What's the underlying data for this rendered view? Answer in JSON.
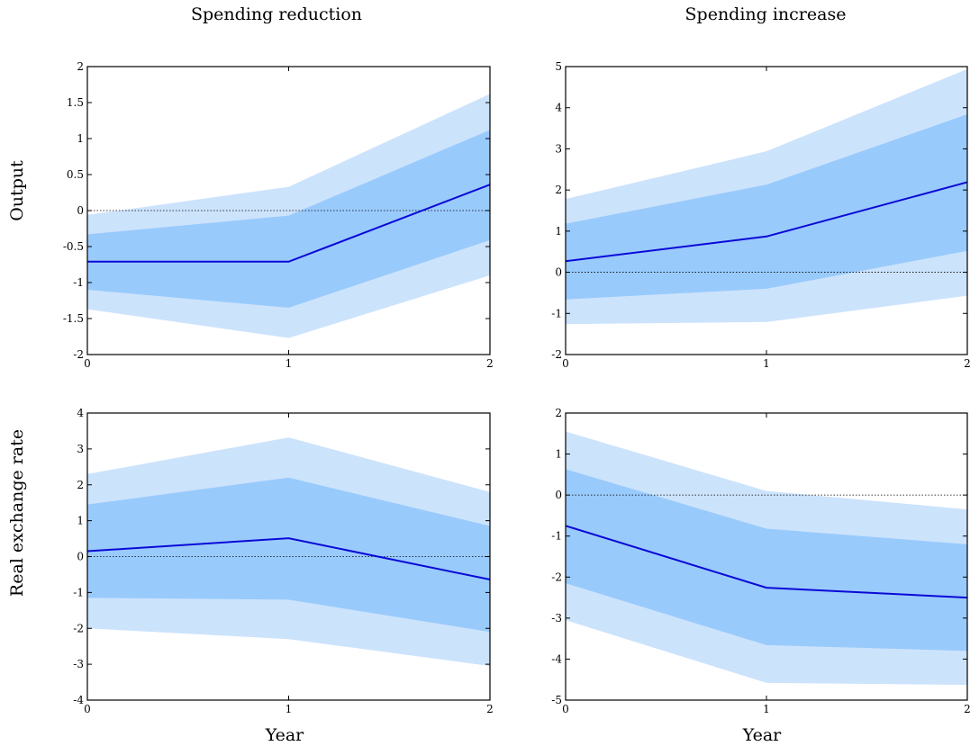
{
  "colors": {
    "outer_band": "#cce3fc",
    "inner_band": "#99cafc",
    "line": "#0a0ad6"
  },
  "chart_data": [
    {
      "type": "area",
      "column_title": "Spending reduction",
      "row_title": "Output",
      "xlabel": "",
      "x": [
        0,
        1,
        2
      ],
      "xticks": [
        "0",
        "1",
        "2"
      ],
      "ylim": [
        -2,
        2
      ],
      "yticks": [
        "-2",
        "-1.5",
        "-1",
        "-0.5",
        "0",
        "0.5",
        "1",
        "1.5",
        "2"
      ],
      "ytick_values": [
        -2,
        -1.5,
        -1,
        -0.5,
        0,
        0.5,
        1,
        1.5,
        2
      ],
      "median": [
        -0.71,
        -0.71,
        0.36
      ],
      "inner_lower": [
        -1.1,
        -1.35,
        -0.41
      ],
      "inner_upper": [
        -0.33,
        -0.07,
        1.12
      ],
      "outer_lower": [
        -1.37,
        -1.77,
        -0.9
      ],
      "outer_upper": [
        -0.06,
        0.33,
        1.62
      ]
    },
    {
      "type": "area",
      "column_title": "Spending increase",
      "row_title": "",
      "xlabel": "",
      "x": [
        0,
        1,
        2
      ],
      "xticks": [
        "0",
        "1",
        "2"
      ],
      "ylim": [
        -2,
        5
      ],
      "yticks": [
        "-2",
        "-1",
        "0",
        "1",
        "2",
        "3",
        "4",
        "5"
      ],
      "ytick_values": [
        -2,
        -1,
        0,
        1,
        2,
        3,
        4,
        5
      ],
      "median": [
        0.27,
        0.87,
        2.19
      ],
      "inner_lower": [
        -0.66,
        -0.4,
        0.52
      ],
      "inner_upper": [
        1.18,
        2.13,
        3.84
      ],
      "outer_lower": [
        -1.26,
        -1.21,
        -0.57
      ],
      "outer_upper": [
        1.78,
        2.94,
        4.94
      ]
    },
    {
      "type": "area",
      "column_title": "",
      "row_title": "Real exchange rate",
      "xlabel": "Year",
      "x": [
        0,
        1,
        2
      ],
      "xticks": [
        "0",
        "1",
        "2"
      ],
      "ylim": [
        -4,
        4
      ],
      "yticks": [
        "-4",
        "-3",
        "-2",
        "-1",
        "0",
        "1",
        "2",
        "3",
        "4"
      ],
      "ytick_values": [
        -4,
        -3,
        -2,
        -1,
        0,
        1,
        2,
        3,
        4
      ],
      "median": [
        0.15,
        0.51,
        -0.64
      ],
      "inner_lower": [
        -1.15,
        -1.2,
        -2.1
      ],
      "inner_upper": [
        1.45,
        2.2,
        0.85
      ],
      "outer_lower": [
        -2.0,
        -2.3,
        -3.05
      ],
      "outer_upper": [
        2.3,
        3.32,
        1.8
      ]
    },
    {
      "type": "area",
      "column_title": "",
      "row_title": "",
      "xlabel": "Year",
      "x": [
        0,
        1,
        2
      ],
      "xticks": [
        "0",
        "1",
        "2"
      ],
      "ylim": [
        -5,
        2
      ],
      "yticks": [
        "-5",
        "-4",
        "-3",
        "-2",
        "-1",
        "0",
        "1",
        "2"
      ],
      "ytick_values": [
        -5,
        -4,
        -3,
        -2,
        -1,
        0,
        1,
        2
      ],
      "median": [
        -0.75,
        -2.26,
        -2.5
      ],
      "inner_lower": [
        -2.15,
        -3.66,
        -3.8
      ],
      "inner_upper": [
        0.63,
        -0.82,
        -1.2
      ],
      "outer_lower": [
        -3.05,
        -4.58,
        -4.63
      ],
      "outer_upper": [
        1.55,
        0.1,
        -0.35
      ]
    }
  ]
}
